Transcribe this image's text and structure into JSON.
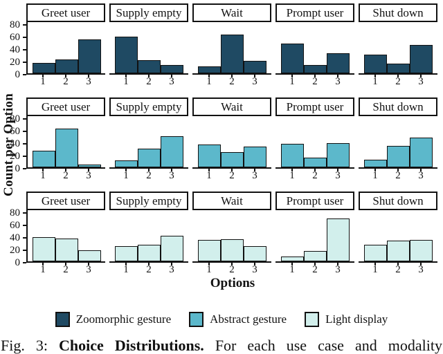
{
  "chart_data": {
    "type": "bar",
    "categories": [
      "1",
      "2",
      "3"
    ],
    "facet_columns": [
      "Greet user",
      "Supply empty",
      "Wait",
      "Prompt user",
      "Shut down"
    ],
    "xlabel": "Options",
    "ylabel": "Count per Option",
    "ylim": [
      0,
      84
    ],
    "y_ticks": [
      0,
      20,
      40,
      60,
      80
    ],
    "grid": "off",
    "legend_position": "bottom",
    "series": [
      {
        "name": "Zoomorphic gesture",
        "color": "#1f4a63",
        "values": [
          [
            17,
            22,
            54
          ],
          [
            59,
            21,
            13
          ],
          [
            11,
            62,
            20
          ],
          [
            47,
            13,
            32
          ],
          [
            30,
            15,
            45
          ]
        ]
      },
      {
        "name": "Abstract gesture",
        "color": "#5cb8cb",
        "values": [
          [
            27,
            62,
            4
          ],
          [
            11,
            30,
            50
          ],
          [
            36,
            24,
            33
          ],
          [
            38,
            15,
            39
          ],
          [
            12,
            34,
            48
          ]
        ]
      },
      {
        "name": "Light display",
        "color": "#d2efec",
        "values": [
          [
            39,
            36,
            18
          ],
          [
            24,
            27,
            41
          ],
          [
            34,
            35,
            24
          ],
          [
            8,
            17,
            69
          ],
          [
            26,
            33,
            34
          ]
        ]
      }
    ]
  },
  "legend": {
    "items": [
      {
        "label": "Zoomorphic gesture",
        "color": "#1f4a63"
      },
      {
        "label": "Abstract gesture",
        "color": "#5cb8cb"
      },
      {
        "label": "Light display",
        "color": "#d2efec"
      }
    ]
  },
  "caption": {
    "prefix": "Fig. 3: ",
    "title": "Choice Distributions.",
    "rest": " For each use case and modality"
  }
}
